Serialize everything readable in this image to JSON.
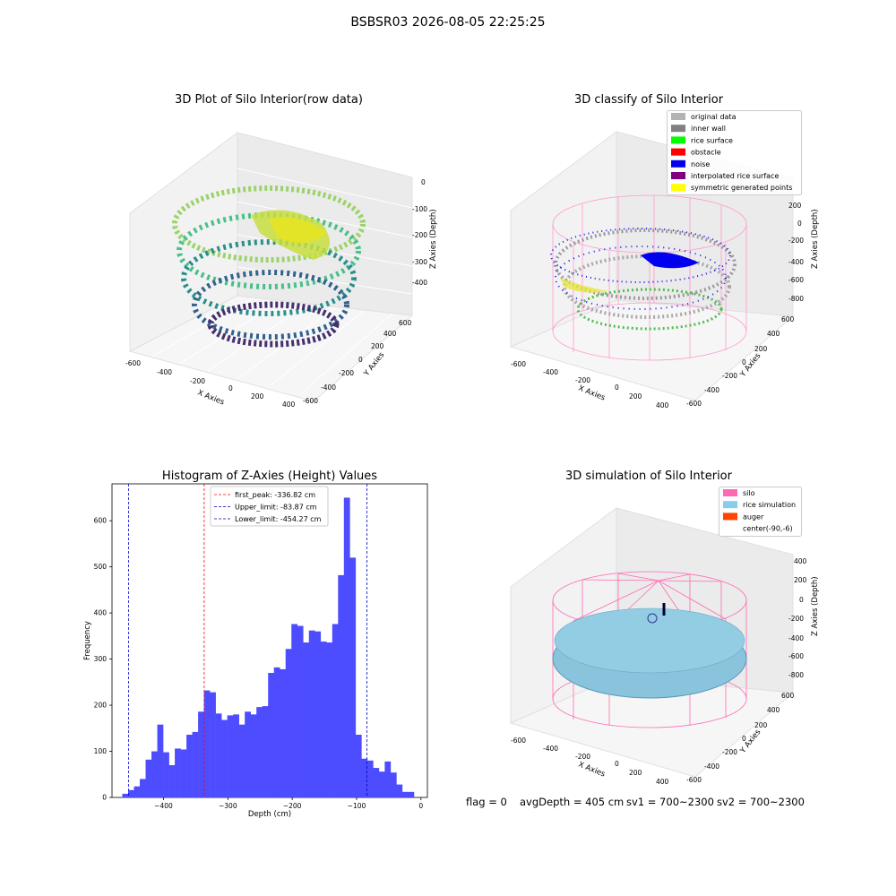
{
  "suptitle": "BSBSR03 2026-08-05 22:25:25",
  "panels": {
    "raw": {
      "title": "3D Plot of Silo Interior(row data)",
      "xlabel": "X Axies",
      "ylabel": "Y Axies",
      "zlabel": "Z Axies (Depth)",
      "xticks": [
        "-600",
        "-400",
        "-200",
        "0",
        "200",
        "400"
      ],
      "yticks": [
        "-600",
        "-400",
        "-200",
        "0",
        "200",
        "400",
        "600"
      ],
      "zticks": [
        "0",
        "-100",
        "-200",
        "-300",
        "-400"
      ]
    },
    "classify": {
      "title": "3D classify of Silo Interior",
      "xlabel": "X Axies",
      "ylabel": "Y Axies",
      "zlabel": "Z Axies (Depth)",
      "xticks": [
        "-600",
        "-400",
        "-200",
        "0",
        "200",
        "400"
      ],
      "yticks": [
        "-600",
        "-400",
        "-200",
        "0",
        "200",
        "400",
        "600"
      ],
      "zticks": [
        "200",
        "0",
        "-200",
        "-400",
        "-600",
        "-800"
      ],
      "legend": [
        {
          "label": "original data",
          "color": "#b3b3b3"
        },
        {
          "label": "inner wall",
          "color": "#808080"
        },
        {
          "label": "rice surface",
          "color": "#00ff00"
        },
        {
          "label": "obstacle",
          "color": "#ff0000"
        },
        {
          "label": "noise",
          "color": "#0000ee"
        },
        {
          "label": "interpolated rice surface",
          "color": "#800080"
        },
        {
          "label": "symmetric generated points",
          "color": "#ffff00"
        }
      ]
    },
    "simulation": {
      "title": "3D simulation of Silo Interior",
      "xlabel": "X Axies",
      "ylabel": "Y Axies",
      "zlabel": "Z Axies (Depth)",
      "xticks": [
        "-600",
        "-400",
        "-200",
        "0",
        "200",
        "400"
      ],
      "yticks": [
        "-600",
        "-400",
        "-200",
        "0",
        "200",
        "400",
        "600"
      ],
      "zticks": [
        "400",
        "200",
        "0",
        "-200",
        "-400",
        "-600",
        "-800"
      ],
      "legend": [
        {
          "label": "silo",
          "color": "#ff69b4"
        },
        {
          "label": "rice simulation",
          "color": "#87ceeb"
        },
        {
          "label": "auger",
          "color": "#ff4500"
        },
        {
          "label": "center(-90,-6)",
          "color": "#ffffff"
        }
      ]
    }
  },
  "chart_data": {
    "type": "bar",
    "title": "Histogram of Z-Axies (Height) Values",
    "xlabel": "Depth (cm)",
    "ylabel": "Frequency",
    "xlim": [
      -480,
      10
    ],
    "ylim": [
      0,
      680
    ],
    "xticks": [
      -400,
      -300,
      -200,
      -100,
      0
    ],
    "xtick_labels": [
      "−400",
      "−300",
      "−200",
      "−100",
      "0"
    ],
    "yticks": [
      0,
      100,
      200,
      300,
      400,
      500,
      600
    ],
    "bar_color": "#4d4dff",
    "bin_start": -464,
    "bin_width": 9.06,
    "values": [
      8,
      16,
      24,
      40,
      82,
      100,
      158,
      98,
      70,
      106,
      104,
      136,
      142,
      186,
      232,
      228,
      182,
      168,
      178,
      180,
      158,
      186,
      180,
      196,
      198,
      270,
      282,
      278,
      322,
      376,
      372,
      336,
      362,
      360,
      338,
      336,
      376,
      482,
      650,
      520,
      136,
      84,
      80,
      64,
      56,
      78,
      54,
      28,
      12,
      12
    ],
    "lines": [
      {
        "label": "first_peak: -336.82 cm",
        "x": -336.82,
        "color": "#ff0000"
      },
      {
        "label": "Upper_limit: -83.87 cm",
        "x": -83.87,
        "color": "#0000cc"
      },
      {
        "label": "Lower_limit: -454.27 cm",
        "x": -454.27,
        "color": "#0000cc"
      }
    ],
    "legend_position": "top-center",
    "grid": false
  },
  "footer": {
    "flag": "flag = 0",
    "avg": "avgDepth = 405 cm",
    "sv1": "sv1 = 700~2300",
    "sv2": "sv2 = 700~2300"
  }
}
